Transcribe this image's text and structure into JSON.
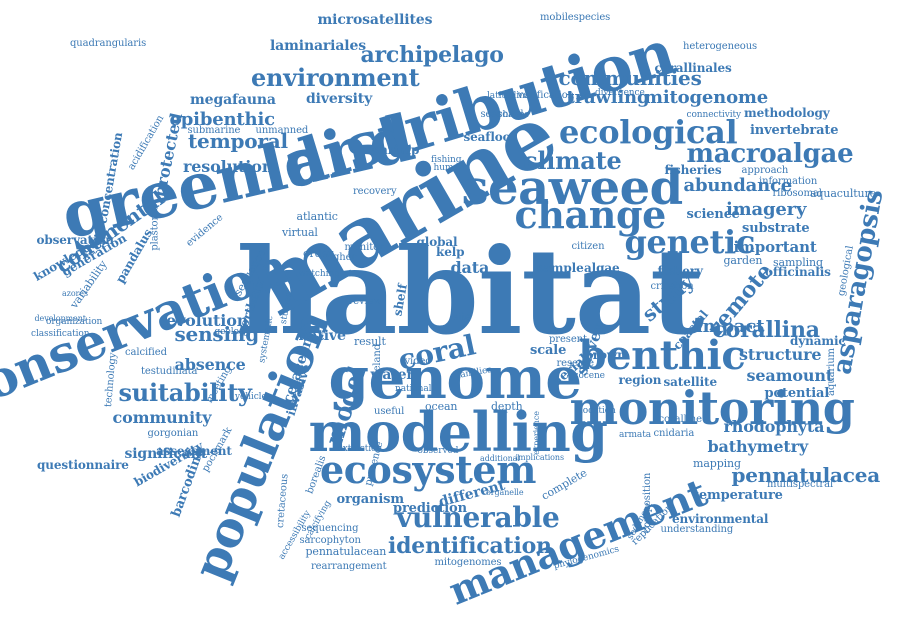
{
  "word_cloud": {
    "color": "#3d7ab5",
    "words": [
      "habitat",
      "marine",
      "distribution",
      "greenland",
      "conservation",
      "population",
      "seaweed",
      "genome",
      "modelling",
      "monitoring",
      "ecosystem",
      "management",
      "change",
      "benthic",
      "ecological",
      "genetic",
      "environment",
      "coral",
      "macroalgae",
      "climate",
      "archipelago",
      "communities",
      "vulnerable",
      "asparagopsis",
      "remote",
      "suitability",
      "model",
      "pennatulacea",
      "identification",
      "abundance",
      "temporal",
      "epibenthic",
      "continental",
      "imagery",
      "corallina",
      "trawling",
      "mitogenome",
      "sensing",
      "study",
      "impact",
      "microsatellites",
      "laminariales",
      "corallinales",
      "megafauna",
      "diversity",
      "resolution",
      "structure",
      "seamount",
      "rhodophyta",
      "bathymetry",
      "community",
      "important",
      "survey",
      "data",
      "evolution",
      "absence",
      "cetacean",
      "protected",
      "invertebrate",
      "methodology",
      "fisheries",
      "science",
      "substrate",
      "temperature",
      "environmental",
      "prediction",
      "organism",
      "different",
      "water",
      "scale",
      "aerial",
      "brown",
      "coastal",
      "region",
      "satellite",
      "potential",
      "dynamic",
      "officinalis",
      "seafloor",
      "shrimp",
      "native",
      "invasive",
      "shelf",
      "kelp",
      "algae",
      "fishery",
      "significant",
      "assessment",
      "barcoding",
      "biodiversity",
      "questionnaire",
      "concentration",
      "observation",
      "knowledge",
      "generation",
      "northern",
      "sequence",
      "pandalus",
      "variability",
      "mobilespecies",
      "quadrangularis",
      "heterogeneous",
      "verification",
      "chagos",
      "connectivity",
      "submarine",
      "unmanned",
      "acidification",
      "plastome",
      "evidence",
      "order",
      "result",
      "ocean",
      "depth",
      "video",
      "iceland",
      "site",
      "aquarium",
      "aquaculture",
      "ribosomal",
      "information",
      "approach",
      "sampling",
      "garden",
      "criterion",
      "coralline",
      "cnidaria",
      "mapping",
      "multispectral",
      "composition",
      "replication",
      "understanding",
      "sediment",
      "complete",
      "pennatulacean",
      "rearrangement",
      "phylogenomics",
      "mitogenomes",
      "sequencing",
      "sarcophyton",
      "cretaceous",
      "accessibility",
      "calcifying",
      "borealis",
      "presence",
      "testudinata",
      "gorgonian",
      "pockmark",
      "calcified",
      "meeting",
      "technology",
      "organization",
      "classification",
      "development",
      "azores",
      "sample",
      "citizen",
      "global",
      "virtual",
      "atlantic",
      "recovery",
      "vehicle",
      "national",
      "extinction",
      "observed",
      "additional",
      "implications",
      "experience",
      "organelle",
      "armata",
      "present",
      "reserve",
      "cocene",
      "families",
      "location",
      "useful",
      "watching",
      "geology",
      "systematic",
      "studies",
      "review",
      "higher",
      "monitor",
      "fishing",
      "human",
      "seasonal",
      "latitudinal",
      "divergence",
      "geological"
    ]
  }
}
